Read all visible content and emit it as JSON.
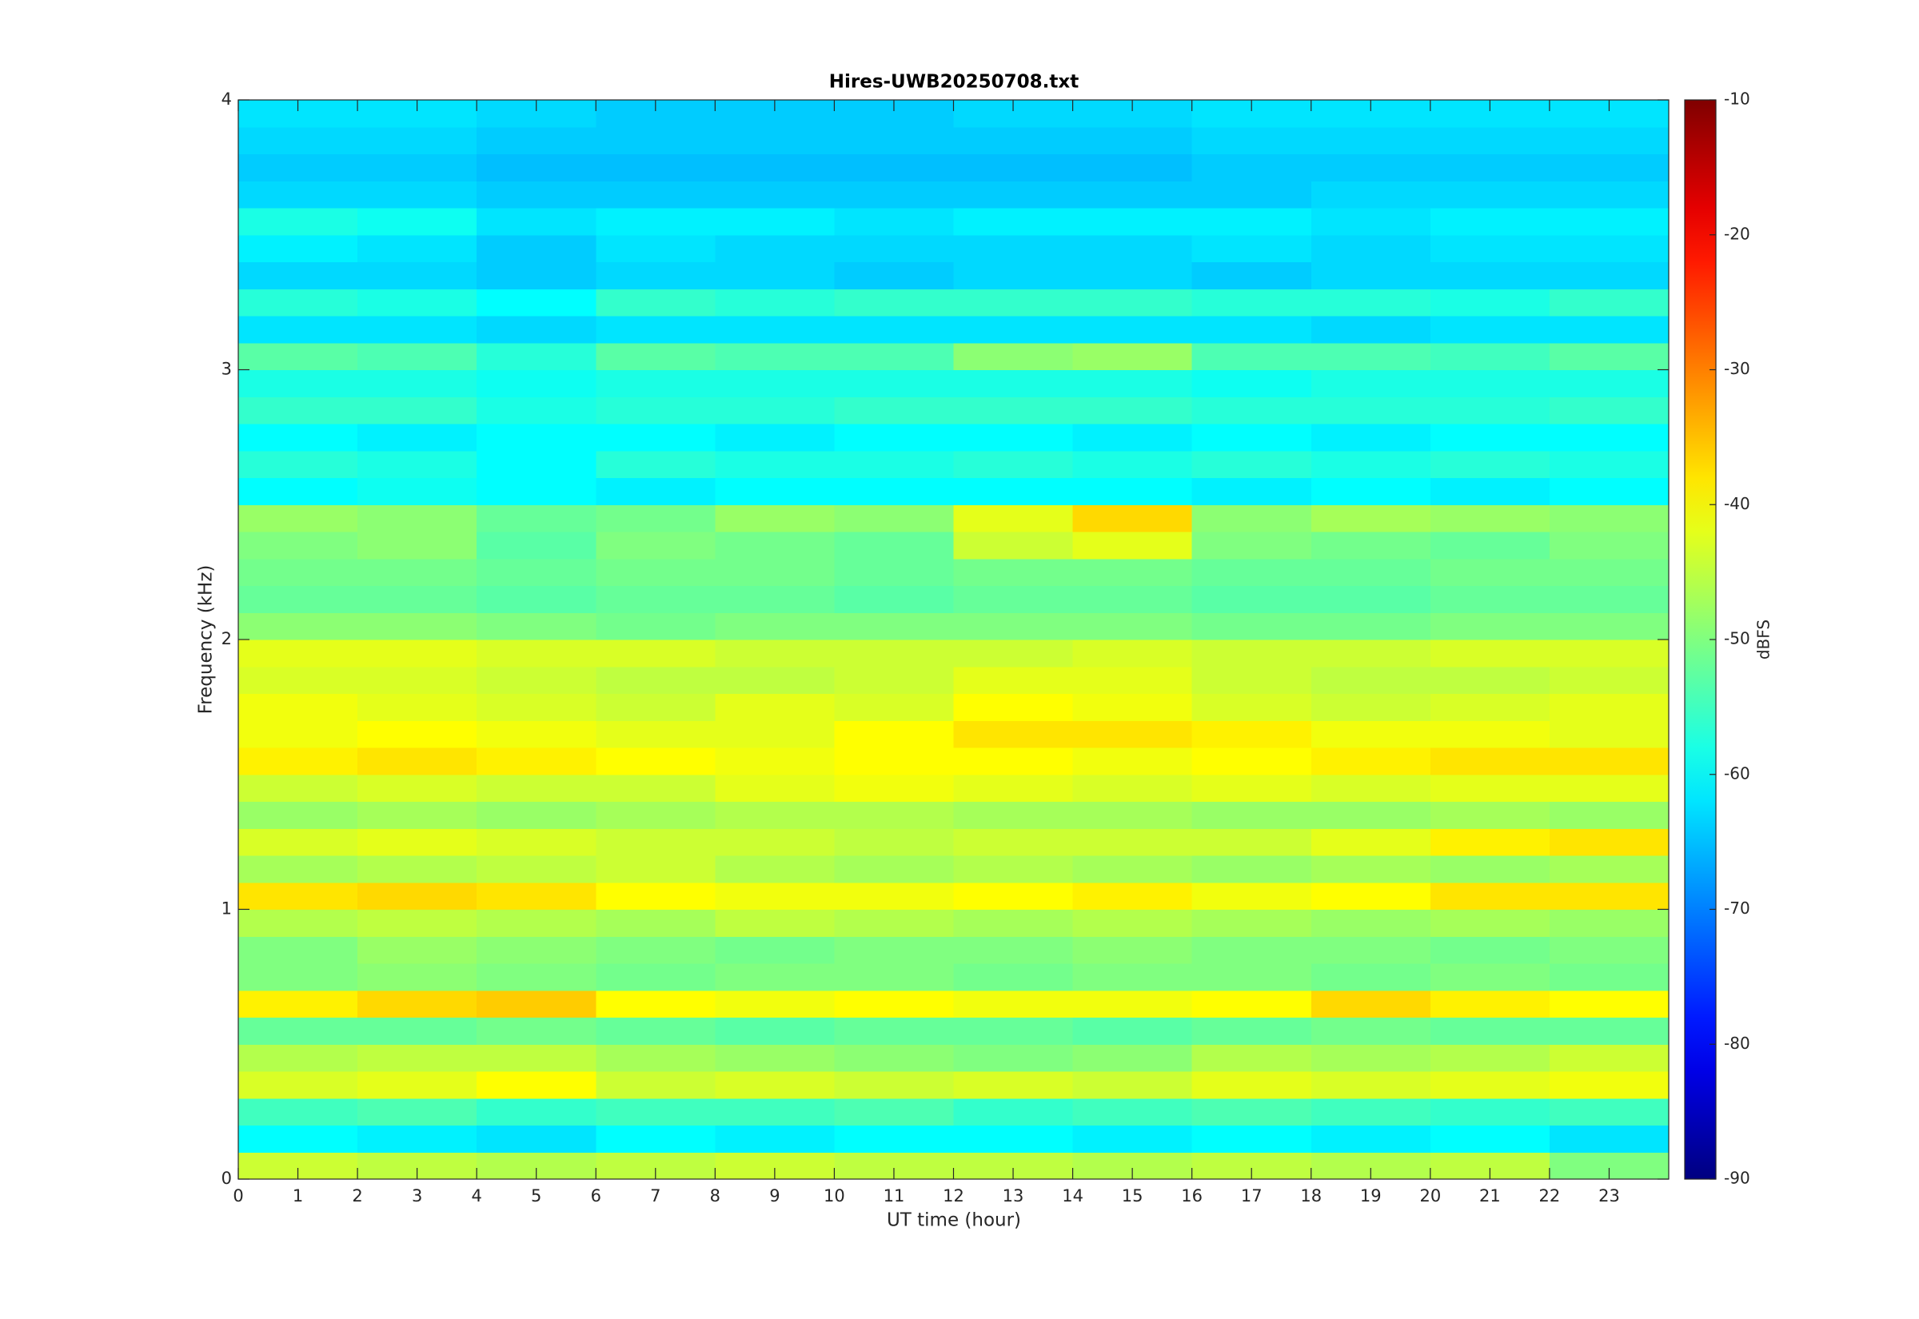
{
  "chart_data": {
    "type": "heatmap",
    "title": "Hires-UWB20250708.txt",
    "xlabel": "UT time (hour)",
    "ylabel": "Frequency (kHz)",
    "colormap": "jet",
    "xlim": [
      0,
      24
    ],
    "ylim": [
      0,
      4
    ],
    "xticks": [
      0,
      1,
      2,
      3,
      4,
      5,
      6,
      7,
      8,
      9,
      10,
      11,
      12,
      13,
      14,
      15,
      16,
      17,
      18,
      19,
      20,
      21,
      22,
      23
    ],
    "yticks": [
      0,
      1,
      2,
      3,
      4
    ],
    "colorbar": {
      "label": "dBFS",
      "clim": [
        -90,
        -10
      ],
      "ticks": [
        -90,
        -80,
        -70,
        -60,
        -50,
        -40,
        -30,
        -20,
        -10
      ]
    },
    "x": [
      1,
      3,
      5,
      7,
      9,
      11,
      13,
      15,
      17,
      19,
      21,
      23
    ],
    "y": [
      0.05,
      0.15,
      0.25,
      0.35,
      0.45,
      0.55,
      0.65,
      0.75,
      0.85,
      0.95,
      1.05,
      1.15,
      1.25,
      1.35,
      1.45,
      1.55,
      1.65,
      1.75,
      1.85,
      1.95,
      2.05,
      2.15,
      2.25,
      2.35,
      2.45,
      2.55,
      2.65,
      2.75,
      2.85,
      2.95,
      3.05,
      3.15,
      3.25,
      3.35,
      3.45,
      3.55,
      3.65,
      3.75,
      3.85,
      3.95
    ],
    "z": [
      [
        -44,
        -45,
        -46,
        -45,
        -44,
        -45,
        -45,
        -46,
        -45,
        -46,
        -45,
        -50
      ],
      [
        -60,
        -61,
        -62,
        -60,
        -61,
        -60,
        -60,
        -61,
        -60,
        -61,
        -60,
        -62
      ],
      [
        -55,
        -54,
        -56,
        -55,
        -55,
        -54,
        -56,
        -55,
        -54,
        -55,
        -56,
        -55
      ],
      [
        -43,
        -42,
        -40,
        -44,
        -43,
        -44,
        -43,
        -44,
        -42,
        -43,
        -42,
        -41
      ],
      [
        -46,
        -45,
        -45,
        -47,
        -48,
        -49,
        -50,
        -49,
        -46,
        -47,
        -46,
        -44
      ],
      [
        -52,
        -52,
        -51,
        -52,
        -53,
        -52,
        -52,
        -53,
        -52,
        -51,
        -52,
        -52
      ],
      [
        -39,
        -37,
        -36,
        -40,
        -41,
        -40,
        -41,
        -41,
        -40,
        -37,
        -39,
        -40
      ],
      [
        -50,
        -49,
        -50,
        -51,
        -50,
        -50,
        -51,
        -50,
        -50,
        -51,
        -50,
        -51
      ],
      [
        -50,
        -48,
        -49,
        -50,
        -51,
        -50,
        -50,
        -49,
        -50,
        -50,
        -51,
        -50
      ],
      [
        -46,
        -45,
        -46,
        -47,
        -45,
        -46,
        -47,
        -46,
        -47,
        -48,
        -47,
        -48
      ],
      [
        -38,
        -37,
        -38,
        -40,
        -41,
        -41,
        -40,
        -39,
        -41,
        -40,
        -38,
        -38
      ],
      [
        -47,
        -46,
        -45,
        -44,
        -46,
        -47,
        -46,
        -47,
        -48,
        -47,
        -48,
        -47
      ],
      [
        -43,
        -42,
        -43,
        -44,
        -44,
        -45,
        -44,
        -44,
        -44,
        -42,
        -39,
        -38
      ],
      [
        -48,
        -47,
        -48,
        -47,
        -46,
        -46,
        -47,
        -47,
        -48,
        -48,
        -47,
        -48
      ],
      [
        -44,
        -43,
        -44,
        -44,
        -42,
        -41,
        -42,
        -43,
        -42,
        -43,
        -42,
        -42
      ],
      [
        -39,
        -38,
        -39,
        -40,
        -41,
        -40,
        -40,
        -41,
        -40,
        -39,
        -38,
        -38
      ],
      [
        -41,
        -40,
        -41,
        -42,
        -42,
        -40,
        -38,
        -38,
        -39,
        -41,
        -41,
        -42
      ],
      [
        -41,
        -42,
        -43,
        -44,
        -42,
        -43,
        -40,
        -41,
        -43,
        -44,
        -43,
        -42
      ],
      [
        -43,
        -43,
        -44,
        -45,
        -45,
        -44,
        -42,
        -42,
        -44,
        -45,
        -45,
        -44
      ],
      [
        -42,
        -42,
        -43,
        -43,
        -44,
        -44,
        -44,
        -43,
        -44,
        -44,
        -43,
        -43
      ],
      [
        -49,
        -49,
        -50,
        -51,
        -50,
        -50,
        -50,
        -50,
        -51,
        -51,
        -50,
        -50
      ],
      [
        -52,
        -52,
        -53,
        -52,
        -52,
        -53,
        -52,
        -52,
        -53,
        -53,
        -52,
        -52
      ],
      [
        -51,
        -51,
        -52,
        -51,
        -51,
        -52,
        -51,
        -51,
        -52,
        -52,
        -51,
        -51
      ],
      [
        -50,
        -49,
        -53,
        -50,
        -51,
        -52,
        -44,
        -42,
        -50,
        -51,
        -52,
        -50
      ],
      [
        -48,
        -49,
        -52,
        -51,
        -48,
        -49,
        -42,
        -37,
        -49,
        -47,
        -48,
        -49
      ],
      [
        -60,
        -59,
        -60,
        -61,
        -60,
        -60,
        -60,
        -60,
        -61,
        -60,
        -61,
        -60
      ],
      [
        -57,
        -58,
        -60,
        -57,
        -58,
        -58,
        -57,
        -58,
        -57,
        -58,
        -57,
        -58
      ],
      [
        -60,
        -61,
        -60,
        -60,
        -61,
        -60,
        -60,
        -61,
        -60,
        -61,
        -60,
        -60
      ],
      [
        -56,
        -56,
        -58,
        -57,
        -57,
        -56,
        -56,
        -56,
        -57,
        -57,
        -57,
        -56
      ],
      [
        -58,
        -58,
        -59,
        -58,
        -58,
        -58,
        -58,
        -58,
        -59,
        -58,
        -58,
        -58
      ],
      [
        -53,
        -54,
        -57,
        -53,
        -54,
        -54,
        -49,
        -48,
        -54,
        -54,
        -55,
        -53
      ],
      [
        -62,
        -62,
        -63,
        -62,
        -62,
        -62,
        -62,
        -62,
        -62,
        -63,
        -62,
        -62
      ],
      [
        -57,
        -58,
        -60,
        -56,
        -57,
        -56,
        -56,
        -56,
        -57,
        -57,
        -58,
        -56
      ],
      [
        -63,
        -63,
        -64,
        -63,
        -63,
        -64,
        -63,
        -63,
        -64,
        -63,
        -63,
        -63
      ],
      [
        -61,
        -62,
        -64,
        -62,
        -63,
        -63,
        -63,
        -63,
        -62,
        -63,
        -62,
        -62
      ],
      [
        -58,
        -59,
        -62,
        -61,
        -61,
        -62,
        -61,
        -61,
        -61,
        -62,
        -61,
        -61
      ],
      [
        -63,
        -63,
        -64,
        -64,
        -64,
        -64,
        -64,
        -64,
        -64,
        -63,
        -63,
        -63
      ],
      [
        -64,
        -64,
        -65,
        -65,
        -65,
        -65,
        -65,
        -65,
        -64,
        -64,
        -64,
        -64
      ],
      [
        -63,
        -63,
        -64,
        -64,
        -64,
        -64,
        -64,
        -64,
        -63,
        -63,
        -63,
        -63
      ],
      [
        -62,
        -62,
        -63,
        -64,
        -64,
        -64,
        -63,
        -63,
        -62,
        -62,
        -62,
        -62
      ]
    ]
  }
}
